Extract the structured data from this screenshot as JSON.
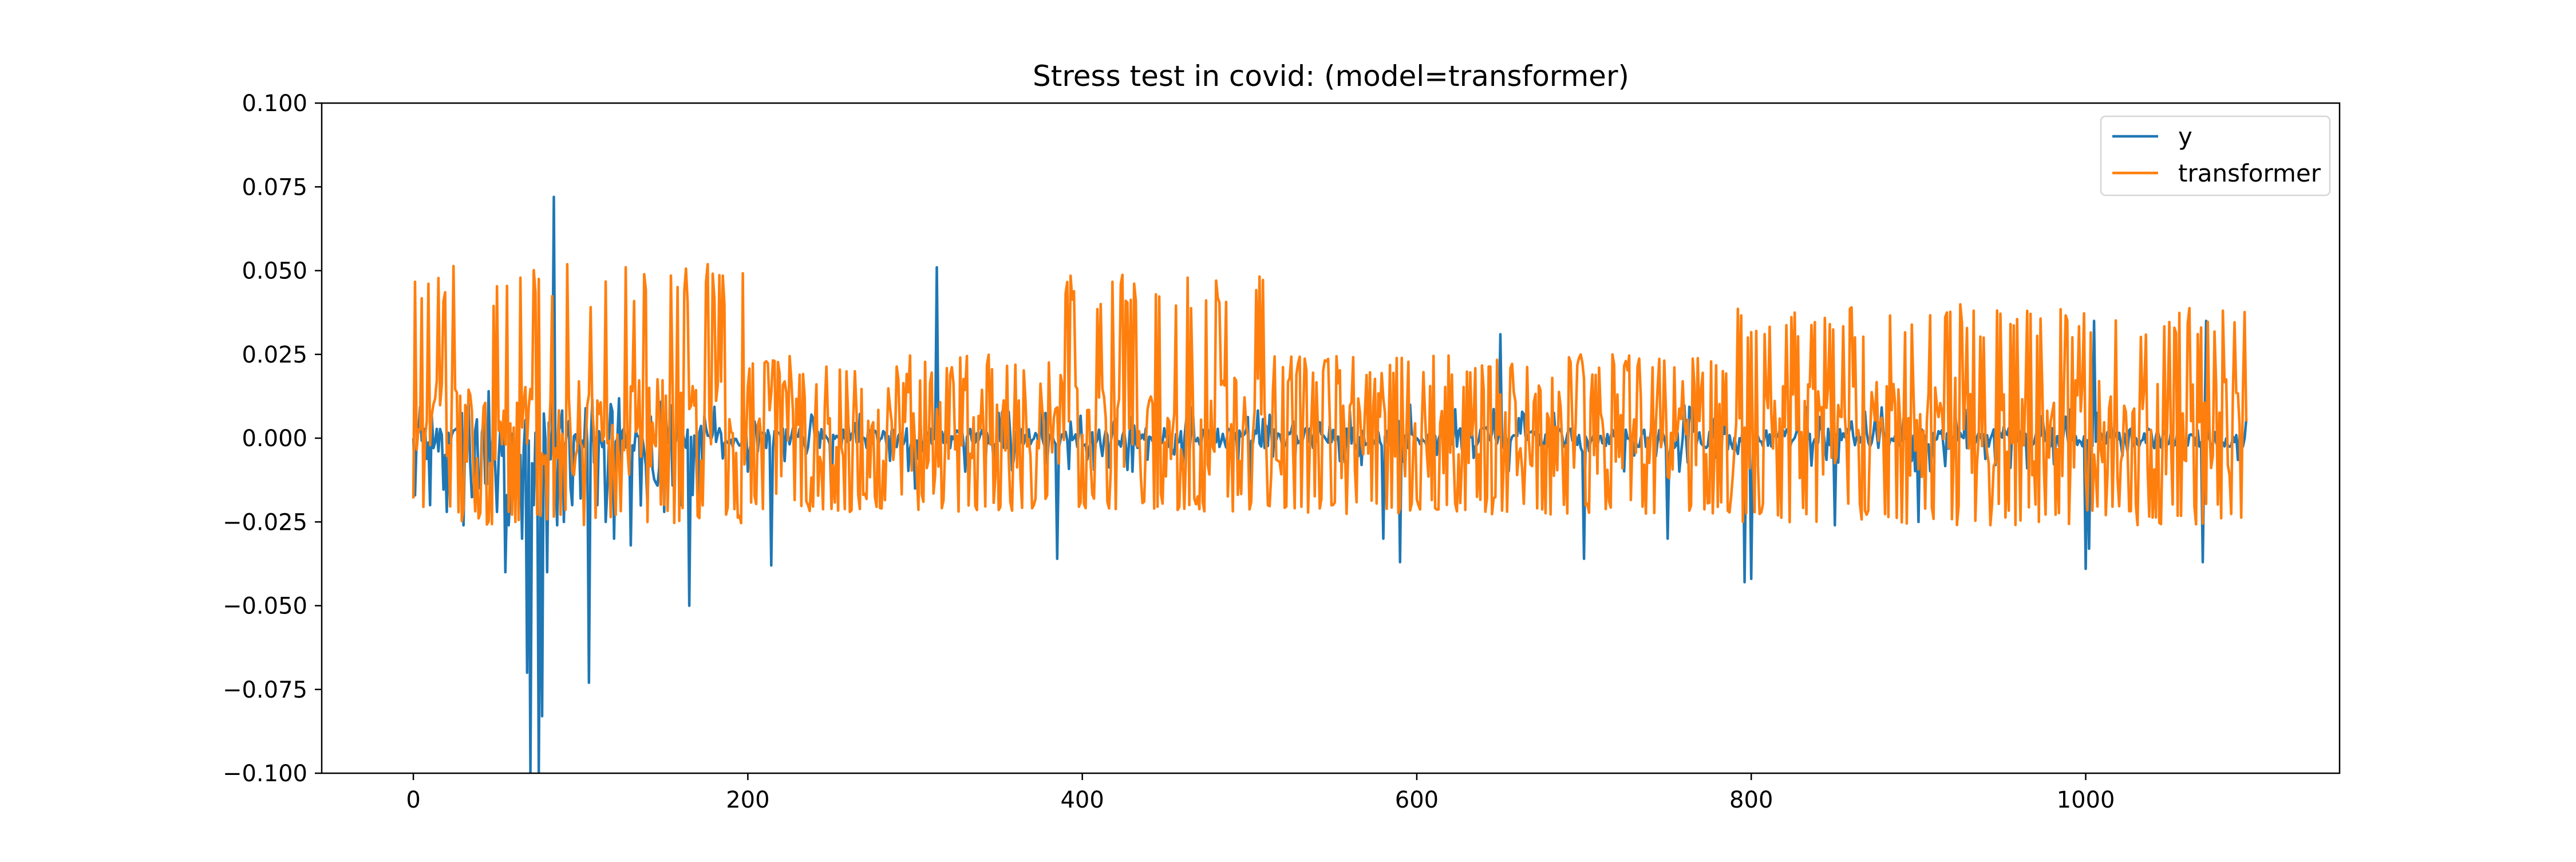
{
  "chart_data": {
    "type": "line",
    "title": "Stress test in covid: (model=transformer)",
    "xlabel": "",
    "ylabel": "",
    "xlim": [
      -54.8,
      1151.8
    ],
    "ylim": [
      -0.1,
      0.1
    ],
    "xticks": [
      0,
      200,
      400,
      600,
      800,
      1000
    ],
    "xtick_labels": [
      "0",
      "200",
      "400",
      "600",
      "800",
      "1000"
    ],
    "yticks": [
      -0.1,
      -0.075,
      -0.05,
      -0.025,
      0.0,
      0.025,
      0.05,
      0.075,
      0.1
    ],
    "ytick_labels": [
      "−0.100",
      "−0.075",
      "−0.050",
      "−0.025",
      "0.000",
      "0.025",
      "0.050",
      "0.075",
      "0.100"
    ],
    "grid": false,
    "legend_position": "upper right",
    "n_points": 1097,
    "series": [
      {
        "name": "y",
        "color": "#1f77b4",
        "description": "daily returns, mostly within ±0.01 with spikes",
        "x": [
          0,
          10,
          20,
          30,
          40,
          50,
          55,
          57,
          60,
          65,
          68,
          70,
          72,
          75,
          77,
          80,
          84,
          86,
          90,
          95,
          100,
          105,
          110,
          115,
          120,
          130,
          140,
          150,
          160,
          165,
          170,
          200,
          214,
          250,
          300,
          313,
          314,
          330,
          385,
          395,
          430,
          500,
          580,
          590,
          600,
          650,
          700,
          750,
          796,
          800,
          850,
          900,
          1000,
          1002,
          1005,
          1010,
          1070,
          1072,
          1080,
          1095
        ],
        "values": [
          0.0,
          -0.02,
          -0.022,
          -0.026,
          -0.015,
          -0.022,
          -0.04,
          -0.026,
          -0.018,
          -0.03,
          -0.07,
          -0.1,
          -0.02,
          -0.1,
          -0.083,
          -0.04,
          0.072,
          -0.026,
          -0.025,
          -0.02,
          -0.018,
          -0.073,
          -0.02,
          -0.025,
          -0.03,
          -0.032,
          -0.02,
          -0.022,
          -0.02,
          -0.05,
          -0.02,
          -0.01,
          -0.038,
          -0.02,
          -0.015,
          0.051,
          0.0,
          -0.01,
          -0.036,
          0.0,
          -0.01,
          -0.015,
          -0.03,
          -0.037,
          0.0,
          0.031,
          -0.036,
          -0.03,
          -0.043,
          -0.042,
          -0.026,
          -0.025,
          -0.039,
          -0.033,
          0.035,
          0.0,
          -0.037,
          0.035,
          0.0,
          0.0
        ]
      },
      {
        "name": "transformer",
        "color": "#ff7f0e",
        "description": "model predictions oscillating roughly between -0.025 and 0.05",
        "segments": [
          {
            "x_start": 0,
            "x_end": 200,
            "high": 0.052,
            "low": -0.026
          },
          {
            "x_start": 200,
            "x_end": 390,
            "high": 0.025,
            "low": -0.022
          },
          {
            "x_start": 390,
            "x_end": 510,
            "high": 0.05,
            "low": -0.022
          },
          {
            "x_start": 510,
            "x_end": 790,
            "high": 0.025,
            "low": -0.023
          },
          {
            "x_start": 790,
            "x_end": 1097,
            "high": 0.04,
            "low": -0.026
          }
        ]
      }
    ]
  }
}
